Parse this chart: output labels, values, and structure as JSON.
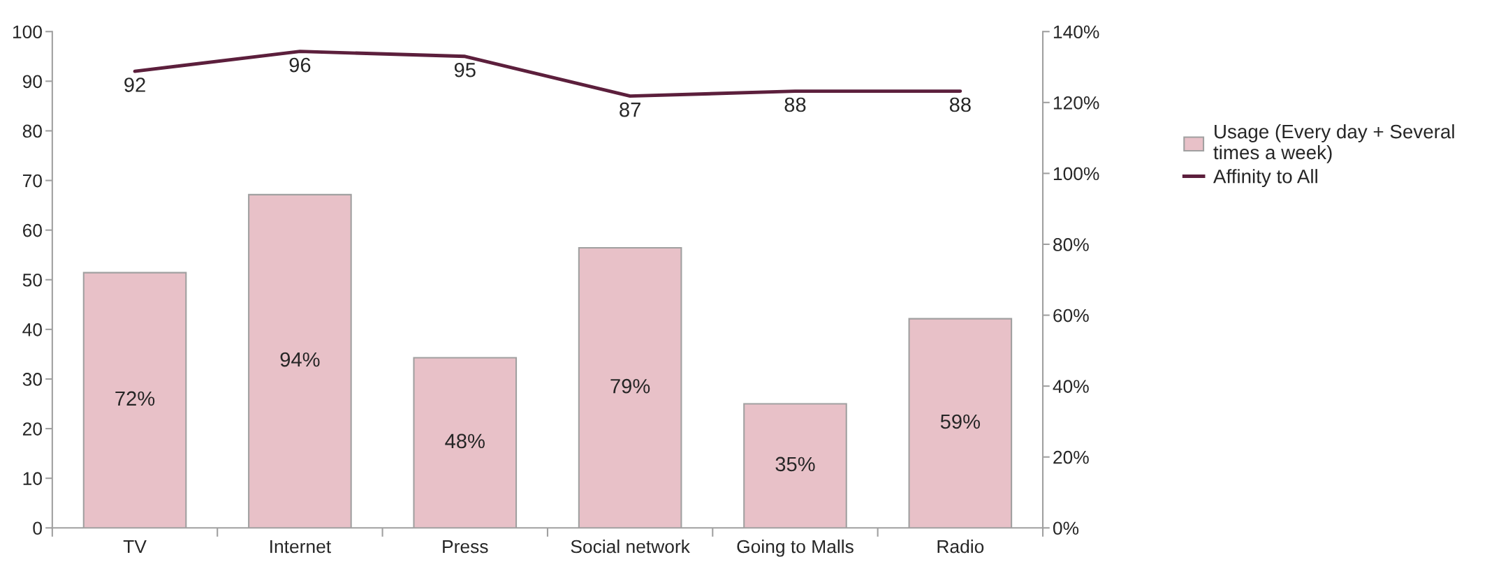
{
  "chart_data": {
    "type": "bar",
    "categories": [
      "TV",
      "Internet",
      "Press",
      "Social network",
      "Going to Malls",
      "Radio"
    ],
    "series": [
      {
        "name": "Usage (Every day + Several times a week)",
        "axis": "y2",
        "color": "#e8c1c8",
        "values": [
          72,
          94,
          48,
          79,
          35,
          59
        ],
        "value_labels": [
          "72%",
          "94%",
          "48%",
          "79%",
          "35%",
          "59%"
        ]
      },
      {
        "name": "Affinity to All",
        "type": "line",
        "axis": "y",
        "color": "#5c1f3c",
        "values": [
          92,
          96,
          95,
          87,
          88,
          88
        ],
        "value_labels": [
          "92",
          "96",
          "95",
          "87",
          "88",
          "88"
        ]
      }
    ],
    "ylim": [
      0,
      100
    ],
    "yticks": [
      0,
      10,
      20,
      30,
      40,
      50,
      60,
      70,
      80,
      90,
      100
    ],
    "y2lim": [
      0,
      140
    ],
    "y2ticks": [
      {
        "value": 0,
        "label": "0%"
      },
      {
        "value": 20,
        "label": "20%"
      },
      {
        "value": 40,
        "label": "40%"
      },
      {
        "value": 60,
        "label": "60%"
      },
      {
        "value": 80,
        "label": "80%"
      },
      {
        "value": 100,
        "label": "100%"
      },
      {
        "value": 120,
        "label": "120%"
      },
      {
        "value": 140,
        "label": "140%"
      }
    ],
    "legend": "right"
  }
}
